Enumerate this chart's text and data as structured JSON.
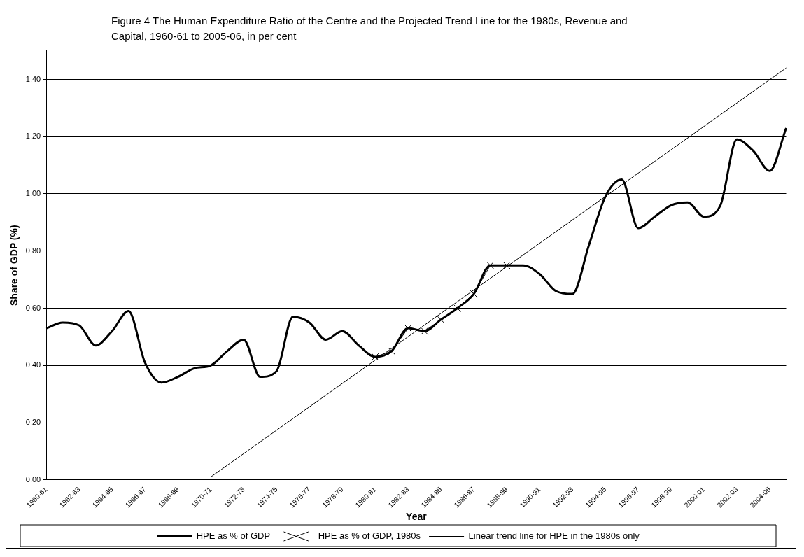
{
  "chart_data": {
    "type": "line",
    "title": "Figure 4 The Human Expenditure Ratio of the Centre and the Projected Trend Line for the 1980s, Revenue and Capital, 1960-61 to 2005-06, in per cent",
    "xlabel": "Year",
    "ylabel": "Share of GDP (%)",
    "categories": [
      "1960-61",
      null,
      "1962-63",
      null,
      "1964-65",
      null,
      "1966-67",
      null,
      "1968-69",
      null,
      "1970-71",
      null,
      "1972-73",
      null,
      "1974-75",
      null,
      "1976-77",
      null,
      "1978-79",
      null,
      "1980-81",
      null,
      "1982-83",
      null,
      "1984-85",
      null,
      "1986-87",
      null,
      "1988-89",
      null,
      "1990-91",
      null,
      "1992-93",
      null,
      "1994-95",
      null,
      "1996-97",
      null,
      "1998-99",
      null,
      "2000-01",
      null,
      "2002-03",
      null,
      "2004-05",
      null
    ],
    "series": [
      {
        "name": "HPE as % of GDP",
        "color": "#000000",
        "marker": "none",
        "values": [
          0.53,
          0.55,
          0.54,
          0.47,
          0.52,
          0.59,
          0.41,
          0.34,
          0.36,
          0.39,
          0.4,
          0.45,
          0.49,
          0.36,
          0.38,
          0.57,
          0.55,
          0.49,
          0.52,
          0.47,
          0.43,
          0.45,
          0.53,
          0.52,
          0.56,
          0.6,
          0.65,
          0.75,
          0.75,
          0.75,
          0.72,
          0.66,
          0.65,
          0.82,
          0.99,
          1.05,
          0.88,
          0.92,
          0.96,
          0.97,
          0.92,
          0.96,
          1.19,
          1.15,
          1.08,
          1.23
        ]
      },
      {
        "name": "HPE as % of GDP, 1980s",
        "color": "#000000",
        "marker": "cross",
        "values": [
          null,
          null,
          null,
          null,
          null,
          null,
          null,
          null,
          null,
          null,
          null,
          null,
          null,
          null,
          null,
          null,
          null,
          null,
          null,
          null,
          0.43,
          0.45,
          0.53,
          0.52,
          0.56,
          0.6,
          0.65,
          0.75,
          0.75,
          null,
          null,
          null,
          null,
          null,
          null,
          null,
          null,
          null,
          null,
          null,
          null,
          null,
          null,
          null,
          null,
          null
        ]
      },
      {
        "name": "Linear trend line for HPE in the 1980s only",
        "color": "#000000",
        "marker": "none",
        "values": [
          null,
          null,
          null,
          null,
          null,
          null,
          null,
          null,
          null,
          null,
          0.01,
          null,
          null,
          null,
          null,
          null,
          null,
          null,
          null,
          null,
          null,
          null,
          null,
          null,
          null,
          null,
          null,
          null,
          null,
          null,
          null,
          null,
          null,
          null,
          null,
          null,
          null,
          null,
          null,
          null,
          null,
          null,
          null,
          null,
          null,
          1.44
        ]
      }
    ],
    "ylim": [
      0,
      1.5
    ],
    "yticks": [
      {
        "value": 0,
        "label": "0.00"
      },
      {
        "value": 0.2,
        "label": "0.20"
      },
      {
        "value": 0.4,
        "label": "0.40"
      },
      {
        "value": 0.6,
        "label": "0.60"
      },
      {
        "value": 0.8,
        "label": "0.80"
      },
      {
        "value": 1.0,
        "label": "1.00"
      },
      {
        "value": 1.2,
        "label": "1.20"
      },
      {
        "value": 1.4,
        "label": "1.40"
      }
    ],
    "grid": "y",
    "legend": "bottom"
  }
}
